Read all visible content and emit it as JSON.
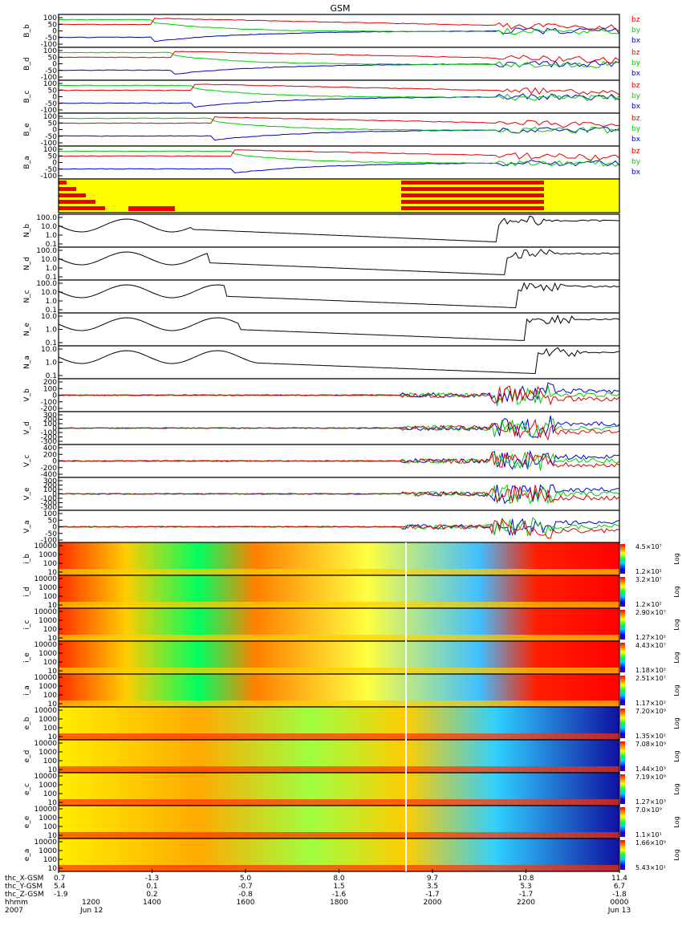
{
  "chart_data": {
    "type": "line",
    "title": "GSM",
    "time_axis": {
      "start": "2007-06-12 12:00",
      "end": "2007-06-13 00:00",
      "tick_labels": [
        "1200",
        "1400",
        "1600",
        "1800",
        "2000",
        "2200",
        "0000"
      ],
      "date_labels": [
        "2007",
        "Jun 12",
        "Jun 13"
      ],
      "hhmm_label": "hhmm"
    },
    "ephemeris": {
      "rows": [
        {
          "label": "thc_X-GSM",
          "values": [
            "0.7",
            "-1.3",
            "5.0",
            "8.0",
            "9.7",
            "10.8",
            "11.4"
          ]
        },
        {
          "label": "thc_Y-GSM",
          "values": [
            "5.4",
            "0.1",
            "-0.7",
            "1.5",
            "3.5",
            "5.3",
            "6.7"
          ]
        },
        {
          "label": "thc_Z-GSM",
          "values": [
            "-1.9",
            "0.2",
            "-0.8",
            "-1.6",
            "-1.7",
            "-1.7",
            "-1.8"
          ]
        }
      ]
    },
    "field_panels": [
      {
        "ylabel": "B_b",
        "ticks": [
          "100",
          "50",
          "0",
          "-50",
          "-100"
        ],
        "ylim": [
          -100,
          100
        ]
      },
      {
        "ylabel": "B_d",
        "ticks": [
          "100",
          "50",
          "0",
          "-50",
          "-100"
        ],
        "ylim": [
          -100,
          100
        ]
      },
      {
        "ylabel": "B_c",
        "ticks": [
          "100",
          "50",
          "0",
          "-50",
          "-100"
        ],
        "ylim": [
          -100,
          100
        ]
      },
      {
        "ylabel": "B_e",
        "ticks": [
          "100",
          "50",
          "0",
          "-50",
          "-100"
        ],
        "ylim": [
          -100,
          100
        ]
      },
      {
        "ylabel": "B_a",
        "ticks": [
          "100",
          "50",
          "0",
          "-50",
          "-100"
        ],
        "ylim": [
          -100,
          100
        ]
      }
    ],
    "field_legend": [
      "bz",
      "by",
      "bx"
    ],
    "series_colors": {
      "bz": "#e00000",
      "by": "#00cc00",
      "bx": "#0000cc",
      "density": "#000000"
    },
    "density_panels": [
      {
        "ylabel": "N_b",
        "ticks": [
          "100.0",
          "10.0",
          "1.0",
          "0.1"
        ],
        "scale": "log"
      },
      {
        "ylabel": "N_d",
        "ticks": [
          "100.0",
          "10.0",
          "1.0",
          "0.1"
        ],
        "scale": "log"
      },
      {
        "ylabel": "N_c",
        "ticks": [
          "100.0",
          "10.0",
          "1.0",
          "0.1"
        ],
        "scale": "log"
      },
      {
        "ylabel": "N_e",
        "ticks": [
          "10.0",
          "1.0",
          "0.1"
        ],
        "scale": "log"
      },
      {
        "ylabel": "N_a",
        "ticks": [
          "10.0",
          "1.0",
          "0.1"
        ],
        "scale": "log"
      }
    ],
    "velocity_panels": [
      {
        "ylabel": "V_b",
        "ticks": [
          "200",
          "100",
          "0",
          "-100",
          "-200"
        ]
      },
      {
        "ylabel": "V_d",
        "ticks": [
          "300",
          "200",
          "100",
          "0",
          "-100",
          "-200",
          "-300"
        ]
      },
      {
        "ylabel": "V_c",
        "ticks": [
          "400",
          "200",
          "0",
          "-200",
          "-400"
        ]
      },
      {
        "ylabel": "V_e",
        "ticks": [
          "300",
          "200",
          "100",
          "0",
          "-100",
          "-200",
          "-300"
        ]
      },
      {
        "ylabel": "V_a",
        "ticks": [
          "100",
          "50",
          "0",
          "-50",
          "-100"
        ]
      }
    ],
    "spectrogram_panels": [
      {
        "ylabel": "i_b",
        "ticks": [
          "10000",
          "1000",
          "100",
          "10"
        ],
        "cbar_max": "4.5×10⁷",
        "cbar_min": "1.2×10²",
        "cbar_label": "Log"
      },
      {
        "ylabel": "i_d",
        "ticks": [
          "10000",
          "1000",
          "100",
          "10"
        ],
        "cbar_max": "3.2×10⁷",
        "cbar_min": "1.2×10²",
        "cbar_label": "Log"
      },
      {
        "ylabel": "i_c",
        "ticks": [
          "10000",
          "1000",
          "100",
          "10"
        ],
        "cbar_max": "2.90×10⁷",
        "cbar_min": "1.27×10²",
        "cbar_label": "Log"
      },
      {
        "ylabel": "i_e",
        "ticks": [
          "10000",
          "1000",
          "100",
          "10"
        ],
        "cbar_max": "4.43×10⁷",
        "cbar_min": "1.18×10²",
        "cbar_label": "Log"
      },
      {
        "ylabel": "i_a",
        "ticks": [
          "10000",
          "1000",
          "100",
          "10"
        ],
        "cbar_max": "2.51×10⁷",
        "cbar_min": "1.17×10²",
        "cbar_label": "Log"
      },
      {
        "ylabel": "e_b",
        "ticks": [
          "10000",
          "1000",
          "100",
          "10"
        ],
        "cbar_max": "7.20×10⁹",
        "cbar_min": "1.35×10²",
        "cbar_label": "Log"
      },
      {
        "ylabel": "e_d",
        "ticks": [
          "10000",
          "1000",
          "100",
          "10"
        ],
        "cbar_max": "7.08×10⁹",
        "cbar_min": "1.44×10³",
        "cbar_label": "Log"
      },
      {
        "ylabel": "e_c",
        "ticks": [
          "10000",
          "1000",
          "100",
          "10"
        ],
        "cbar_max": "7.19×10⁹",
        "cbar_min": "1.27×10³",
        "cbar_label": "Log"
      },
      {
        "ylabel": "e_e",
        "ticks": [
          "10000",
          "1000",
          "100",
          "10"
        ],
        "cbar_max": "7.0×10⁹",
        "cbar_min": "1.1×10¹",
        "cbar_label": "Log"
      },
      {
        "ylabel": "e_a",
        "ticks": [
          "10000",
          "1000",
          "100",
          "10"
        ],
        "cbar_max": "1.66×10⁹",
        "cbar_min": "5.43×10¹",
        "cbar_label": "Log"
      }
    ],
    "mode_bar_colors": {
      "background": "#ffff00",
      "active": "#ee0000"
    }
  }
}
